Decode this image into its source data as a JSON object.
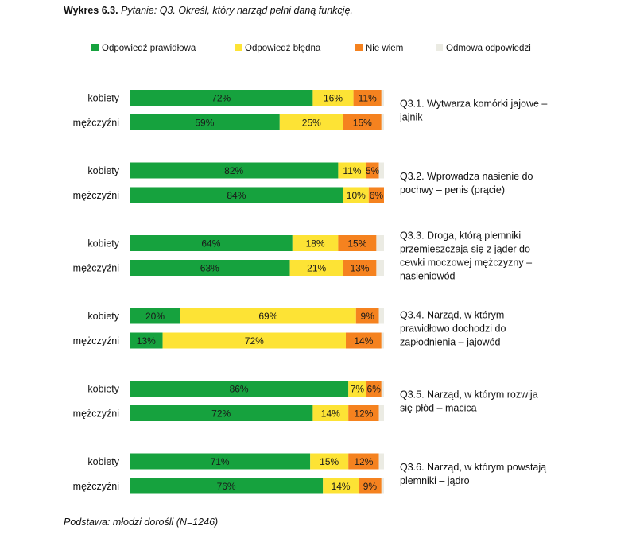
{
  "title": {
    "bold": "Wykres 6.3.",
    "italic": "Pytanie: Q3. Określ, który narząd pełni daną funkcję."
  },
  "footer": "Podstawa: młodzi dorośli (N=1246)",
  "colors": {
    "correct": "#16a23e",
    "wrong": "#fde335",
    "dontknow": "#f5821f",
    "refused": "#ebebe3"
  },
  "chart_data": {
    "type": "bar",
    "orientation": "horizontal",
    "stacked": true,
    "percent_stacked": true,
    "legend": {
      "position": "top",
      "entries": [
        "Odpowiedź prawidłowa",
        "Odpowiedź błędna",
        "Nie wiem",
        "Odmowa odpowiedzi"
      ]
    },
    "series_names": [
      "Odpowiedź prawidłowa",
      "Odpowiedź błędna",
      "Nie wiem",
      "Odmowa odpowiedzi"
    ],
    "groups": [
      {
        "question": [
          "Q3.1. Wytwarza komórki jajowe –",
          "jajnik"
        ],
        "rows": [
          {
            "label": "kobiety",
            "values": [
              72,
              16,
              11,
              1
            ],
            "labels": [
              "72%",
              "16%",
              "11%",
              ""
            ]
          },
          {
            "label": "mężczyźni",
            "values": [
              59,
              25,
              15,
              1
            ],
            "labels": [
              "59%",
              "25%",
              "15%",
              ""
            ]
          }
        ]
      },
      {
        "question": [
          "Q3.2. Wprowadza nasienie do",
          "pochwy – penis (prącie)"
        ],
        "rows": [
          {
            "label": "kobiety",
            "values": [
              82,
              11,
              5,
              2
            ],
            "labels": [
              "82%",
              "11%",
              "5%",
              ""
            ]
          },
          {
            "label": "mężczyźni",
            "values": [
              84,
              10,
              6,
              0
            ],
            "labels": [
              "84%",
              "10%",
              "6%",
              ""
            ]
          }
        ]
      },
      {
        "question": [
          "Q3.3. Droga, którą plemniki",
          "przemieszczają się z jąder do",
          "cewki moczowej mężczyzny –",
          "nasieniowód"
        ],
        "rows": [
          {
            "label": "kobiety",
            "values": [
              64,
              18,
              15,
              3
            ],
            "labels": [
              "64%",
              "18%",
              "15%",
              ""
            ]
          },
          {
            "label": "mężczyźni",
            "values": [
              63,
              21,
              13,
              3
            ],
            "labels": [
              "63%",
              "21%",
              "13%",
              ""
            ]
          }
        ]
      },
      {
        "question": [
          "Q3.4. Narząd, w którym",
          "prawidłowo dochodzi do",
          "zapłodnienia – jajowód"
        ],
        "rows": [
          {
            "label": "kobiety",
            "values": [
              20,
              69,
              9,
              2
            ],
            "labels": [
              "20%",
              "69%",
              "9%",
              ""
            ]
          },
          {
            "label": "mężczyźni",
            "values": [
              13,
              72,
              14,
              1
            ],
            "labels": [
              "13%",
              "72%",
              "14%",
              ""
            ]
          }
        ]
      },
      {
        "question": [
          "Q3.5. Narząd, w którym rozwija",
          "się płód – macica"
        ],
        "rows": [
          {
            "label": "kobiety",
            "values": [
              86,
              7,
              6,
              1
            ],
            "labels": [
              "86%",
              "7%",
              "6%",
              ""
            ]
          },
          {
            "label": "mężczyźni",
            "values": [
              72,
              14,
              12,
              2
            ],
            "labels": [
              "72%",
              "14%",
              "12%",
              ""
            ]
          }
        ]
      },
      {
        "question": [
          "Q3.6. Narząd, w którym powstają",
          "plemniki – jądro"
        ],
        "rows": [
          {
            "label": "kobiety",
            "values": [
              71,
              15,
              12,
              2
            ],
            "labels": [
              "71%",
              "15%",
              "12%",
              ""
            ]
          },
          {
            "label": "mężczyźni",
            "values": [
              76,
              14,
              9,
              1
            ],
            "labels": [
              "76%",
              "14%",
              "9%",
              ""
            ]
          }
        ]
      }
    ]
  }
}
